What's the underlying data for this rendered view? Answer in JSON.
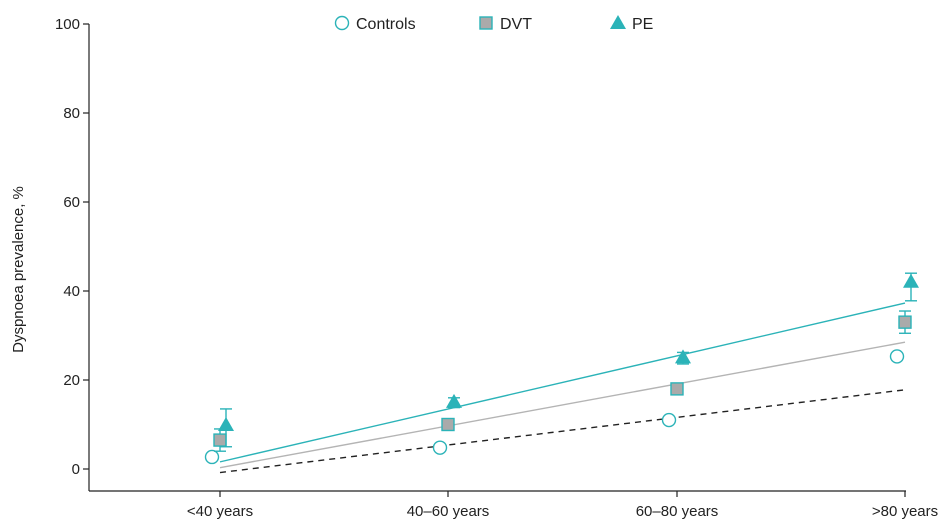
{
  "chart_data": {
    "type": "scatter",
    "title": "",
    "xlabel": "",
    "ylabel": "Dyspnoea prevalence, %",
    "categories": [
      "<40 years",
      "40–60 years",
      "60–80 years",
      ">80 years"
    ],
    "ylim": [
      0,
      100
    ],
    "yticks": [
      0,
      20,
      40,
      60,
      80,
      100
    ],
    "grid": false,
    "legend_position": "top",
    "series": [
      {
        "name": "Controls",
        "marker": "circle-open",
        "color": "#2bb3b8",
        "values": [
          2.7,
          4.8,
          11.0,
          25.3
        ]
      },
      {
        "name": "DVT",
        "marker": "square",
        "color": "#2bb3b8",
        "fill": "#aaaaaa",
        "values": [
          6.5,
          10.0,
          18.0,
          33.0
        ],
        "error": [
          [
            4.0,
            9.0
          ],
          [
            8.8,
            11.2
          ],
          [
            16.8,
            19.2
          ],
          [
            30.5,
            35.5
          ]
        ]
      },
      {
        "name": "PE",
        "marker": "triangle",
        "color": "#2bb3b8",
        "values": [
          9.8,
          15.0,
          25.0,
          42.0
        ],
        "error": [
          [
            5.0,
            13.5
          ],
          [
            13.8,
            16.0
          ],
          [
            23.6,
            26.2
          ],
          [
            37.8,
            44.0
          ]
        ]
      }
    ],
    "trend_lines": [
      {
        "series": "Controls",
        "style": "dashed",
        "color": "#222222",
        "start": -0.8,
        "end": 17.8
      },
      {
        "series": "DVT",
        "style": "solid",
        "color": "#b4b4b4",
        "start": 0.3,
        "end": 28.5
      },
      {
        "series": "PE",
        "style": "solid",
        "color": "#2bb3b8",
        "start": 1.6,
        "end": 37.3
      }
    ]
  }
}
